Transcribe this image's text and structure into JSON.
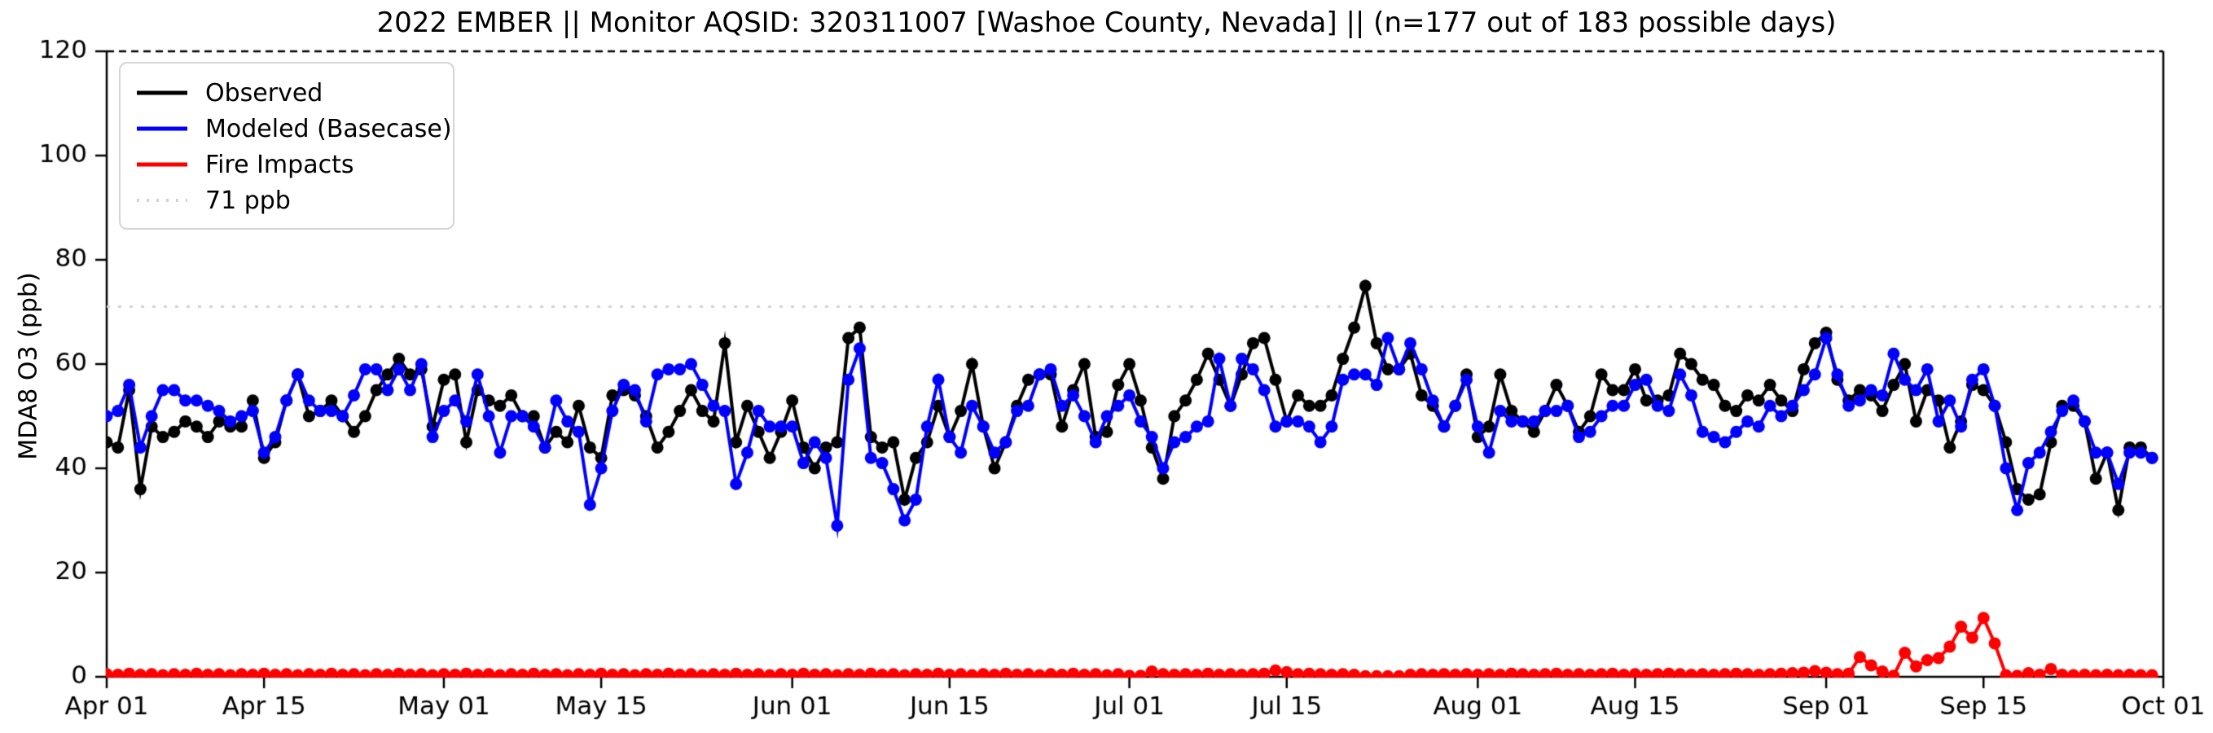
{
  "title": "2022 EMBER || Monitor AQSID: 320311007 [Washoe County, Nevada] || (n=177 out of 183 possible days)",
  "ylabel": "MDA8 O3 (ppb)",
  "legend": {
    "observed_label": "Observed",
    "modeled_label": "Modeled (Basecase)",
    "fire_label": "Fire Impacts",
    "threshold_label": "71 ppb"
  },
  "colors": {
    "observed": "#000000",
    "modeled": "#0000ff",
    "fire": "#ff0000",
    "threshold": "#d3d3d3",
    "axis": "#000000"
  },
  "chart_data": {
    "type": "line",
    "title": "2022 EMBER || Monitor AQSID: 320311007 [Washoe County, Nevada] || (n=177 out of 183 possible days)",
    "xlabel": "",
    "ylabel": "MDA8 O3 (ppb)",
    "ylim": [
      0,
      120
    ],
    "y_ticks": [
      0,
      20,
      40,
      60,
      80,
      100,
      120
    ],
    "x_start_date": "2022-04-01",
    "x_unit": "day",
    "x_tick_labels": [
      "Apr 01",
      "Apr 15",
      "May 01",
      "May 15",
      "Jun 01",
      "Jun 15",
      "Jul 01",
      "Jul 15",
      "Aug 01",
      "Aug 15",
      "Sep 01",
      "Sep 15",
      "Oct 01"
    ],
    "x_tick_days": [
      0,
      14,
      30,
      44,
      61,
      75,
      91,
      105,
      122,
      136,
      153,
      167,
      183
    ],
    "threshold_value": 71,
    "grid": false,
    "legend_position": "upper-left",
    "series": [
      {
        "name": "Observed",
        "color": "#000000",
        "marker": "circle",
        "values": [
          45,
          44,
          55,
          36,
          48,
          46,
          47,
          49,
          48,
          46,
          49,
          48,
          48,
          53,
          42,
          45,
          53,
          58,
          50,
          51,
          53,
          50,
          47,
          50,
          55,
          58,
          61,
          58,
          59,
          48,
          57,
          58,
          45,
          55,
          53,
          52,
          54,
          50,
          50,
          44,
          47,
          45,
          52,
          44,
          42,
          54,
          55,
          54,
          50,
          44,
          47,
          51,
          55,
          51,
          49,
          64,
          45,
          52,
          47,
          42,
          47,
          53,
          44,
          40,
          44,
          45,
          65,
          67,
          46,
          44,
          45,
          34,
          42,
          45,
          52,
          46,
          51,
          60,
          48,
          40,
          45,
          52,
          57,
          58,
          58,
          48,
          55,
          60,
          46,
          47,
          56,
          60,
          53,
          44,
          38,
          50,
          53,
          57,
          62,
          57,
          52,
          58,
          64,
          65,
          57,
          49,
          54,
          52,
          52,
          54,
          61,
          67,
          75,
          64,
          59,
          59,
          62,
          54,
          52,
          48,
          52,
          58,
          46,
          48,
          58,
          51,
          49,
          47,
          51,
          56,
          52,
          47,
          50,
          58,
          55,
          55,
          59,
          53,
          53,
          54,
          62,
          60,
          57,
          56,
          52,
          51,
          54,
          53,
          56,
          53,
          51,
          59,
          64,
          66,
          57,
          53,
          55,
          54,
          51,
          56,
          60,
          49,
          55,
          53,
          44,
          49,
          56,
          55,
          52,
          45,
          36,
          34,
          35,
          45,
          52,
          52,
          49,
          38,
          43,
          32,
          44,
          44,
          42
        ]
      },
      {
        "name": "Modeled (Basecase)",
        "color": "#0000ff",
        "marker": "circle",
        "values": [
          50,
          51,
          56,
          44,
          50,
          55,
          55,
          53,
          53,
          52,
          51,
          49,
          50,
          51,
          43,
          46,
          53,
          58,
          53,
          51,
          51,
          50,
          54,
          59,
          59,
          55,
          59,
          55,
          60,
          46,
          51,
          53,
          49,
          58,
          50,
          43,
          50,
          50,
          48,
          44,
          53,
          49,
          47,
          33,
          40,
          51,
          56,
          55,
          49,
          58,
          59,
          59,
          60,
          56,
          52,
          51,
          37,
          43,
          51,
          48,
          48,
          48,
          41,
          45,
          42,
          29,
          57,
          63,
          42,
          41,
          36,
          30,
          34,
          48,
          57,
          46,
          43,
          52,
          48,
          43,
          45,
          51,
          52,
          58,
          59,
          52,
          54,
          50,
          45,
          50,
          52,
          54,
          49,
          46,
          40,
          45,
          46,
          48,
          49,
          61,
          52,
          61,
          59,
          55,
          48,
          49,
          49,
          48,
          45,
          48,
          57,
          58,
          58,
          56,
          65,
          59,
          64,
          59,
          53,
          48,
          52,
          57,
          48,
          43,
          51,
          49,
          49,
          49,
          51,
          51,
          52,
          46,
          47,
          50,
          52,
          52,
          56,
          57,
          52,
          51,
          58,
          54,
          47,
          46,
          45,
          47,
          49,
          48,
          52,
          50,
          52,
          55,
          58,
          65,
          58,
          52,
          53,
          55,
          54,
          62,
          57,
          55,
          59,
          49,
          53,
          48,
          57,
          59,
          52,
          40,
          32,
          41,
          43,
          47,
          51,
          53,
          49,
          43,
          43,
          37,
          43,
          43,
          42
        ]
      },
      {
        "name": "Fire Impacts",
        "color": "#ff0000",
        "marker": "circle",
        "values": [
          0.5,
          0.4,
          0.6,
          0.4,
          0.5,
          0.3,
          0.5,
          0.4,
          0.6,
          0.4,
          0.5,
          0.3,
          0.5,
          0.4,
          0.6,
          0.4,
          0.5,
          0.3,
          0.5,
          0.4,
          0.6,
          0.4,
          0.5,
          0.3,
          0.5,
          0.4,
          0.6,
          0.4,
          0.5,
          0.3,
          0.5,
          0.4,
          0.6,
          0.4,
          0.5,
          0.3,
          0.5,
          0.4,
          0.6,
          0.4,
          0.5,
          0.3,
          0.5,
          0.4,
          0.6,
          0.4,
          0.5,
          0.3,
          0.5,
          0.4,
          0.6,
          0.4,
          0.5,
          0.3,
          0.5,
          0.4,
          0.6,
          0.4,
          0.5,
          0.3,
          0.5,
          0.4,
          0.6,
          0.4,
          0.5,
          0.3,
          0.5,
          0.4,
          0.6,
          0.4,
          0.5,
          0.3,
          0.5,
          0.4,
          0.6,
          0.4,
          0.5,
          0.3,
          0.5,
          0.4,
          0.6,
          0.4,
          0.5,
          0.3,
          0.5,
          0.4,
          0.6,
          0.4,
          0.5,
          0.3,
          0.5,
          0.2,
          0.2,
          1.0,
          0.5,
          0.4,
          0.5,
          0.4,
          0.6,
          0.4,
          0.5,
          0.4,
          0.5,
          0.6,
          1.2,
          0.9,
          0.5,
          0.6,
          0.5,
          0.4,
          0.5,
          0.4,
          0.1,
          0.1,
          0.1,
          0.1,
          0.4,
          0.5,
          0.4,
          0.5,
          0.4,
          0.5,
          0.4,
          0.5,
          0.4,
          0.6,
          0.5,
          0.4,
          0.5,
          0.6,
          0.4,
          0.5,
          0.4,
          0.5,
          0.6,
          0.4,
          0.5,
          0.4,
          0.5,
          0.6,
          0.5,
          0.4,
          0.5,
          0.4,
          0.5,
          0.6,
          0.5,
          0.4,
          0.5,
          0.6,
          0.7,
          0.8,
          1.1,
          0.8,
          0.5,
          0.6,
          3.8,
          2.2,
          1.0,
          0.2,
          4.6,
          2.0,
          3.2,
          3.6,
          5.8,
          9.6,
          7.5,
          11.3,
          6.4,
          0.3,
          0.2,
          0.7,
          0.4,
          1.5,
          0.4,
          0.3,
          0.4,
          0.3,
          0.4,
          0.3,
          0.4,
          0.3,
          0.3
        ]
      }
    ]
  }
}
